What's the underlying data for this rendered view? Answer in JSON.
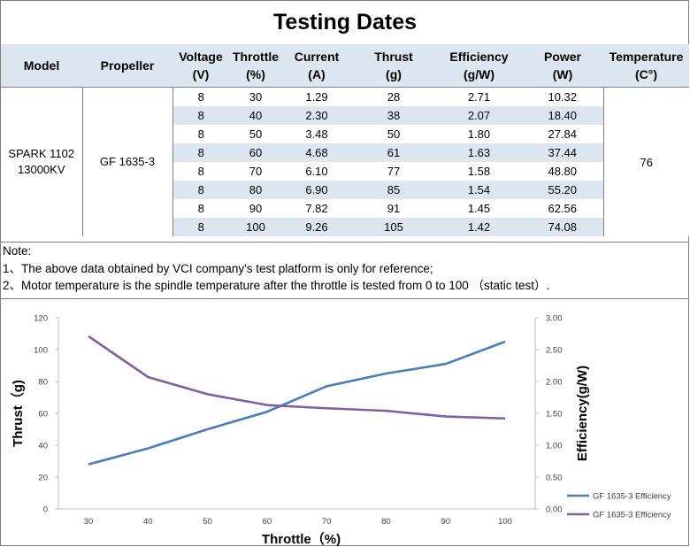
{
  "title": "Testing Dates",
  "table": {
    "headers": [
      [
        "Model"
      ],
      [
        "Propeller"
      ],
      [
        "Voltage",
        "(V)"
      ],
      [
        "Throttle",
        "(%)"
      ],
      [
        "Current",
        "(A)"
      ],
      [
        "Thrust",
        "(g)"
      ],
      [
        "Efficiency",
        "(g/W)"
      ],
      [
        "Power",
        "(W)"
      ],
      [
        "Temperature",
        "(C°)"
      ]
    ],
    "model_line1": "SPARK 1102",
    "model_line2": "13000KV",
    "propeller": "GF 1635-3",
    "temperature": "76",
    "rows": [
      [
        "8",
        "30",
        "1.29",
        "28",
        "2.71",
        "10.32"
      ],
      [
        "8",
        "40",
        "2.30",
        "38",
        "2.07",
        "18.40"
      ],
      [
        "8",
        "50",
        "3.48",
        "50",
        "1.80",
        "27.84"
      ],
      [
        "8",
        "60",
        "4.68",
        "61",
        "1.63",
        "37.44"
      ],
      [
        "8",
        "70",
        "6.10",
        "77",
        "1.58",
        "48.80"
      ],
      [
        "8",
        "80",
        "6.90",
        "85",
        "1.54",
        "55.20"
      ],
      [
        "8",
        "90",
        "7.82",
        "91",
        "1.45",
        "62.56"
      ],
      [
        "8",
        "100",
        "9.26",
        "105",
        "1.42",
        "74.08"
      ]
    ]
  },
  "notes": [
    "Note:",
    "1、The above data obtained by VCI company's test platform is only for reference;",
    "2、Motor temperature is the spindle temperature after the throttle is tested from 0 to 100 （static test）."
  ],
  "chart_data": {
    "type": "line",
    "x": [
      30,
      40,
      50,
      60,
      70,
      80,
      90,
      100
    ],
    "xlabel": "Throttle（%)",
    "ylabel_left": "Thrust（g)",
    "ylabel_right": "Efficiency(g/W)",
    "ylim_left": [
      0,
      120
    ],
    "ylim_right": [
      0,
      3
    ],
    "yticks_left": [
      "0",
      "20",
      "40",
      "60",
      "80",
      "100",
      "120"
    ],
    "yticks_right": [
      "0.00",
      "0.50",
      "1.00",
      "1.50",
      "2.00",
      "2.50",
      "3.00"
    ],
    "xticks": [
      "30",
      "40",
      "50",
      "60",
      "70",
      "80",
      "90",
      "100"
    ],
    "grid": false,
    "legend_position": "bottom-right",
    "series": [
      {
        "name": "GF 1635-3 Efficiency",
        "axis": "left",
        "color": "#4a7ebb",
        "values": [
          28,
          38,
          50,
          61,
          77,
          85,
          91,
          105
        ]
      },
      {
        "name": "GF 1635-3 Efficiency",
        "axis": "right",
        "color": "#7e5fa0",
        "values": [
          2.71,
          2.07,
          1.8,
          1.63,
          1.58,
          1.54,
          1.45,
          1.42
        ]
      }
    ]
  }
}
